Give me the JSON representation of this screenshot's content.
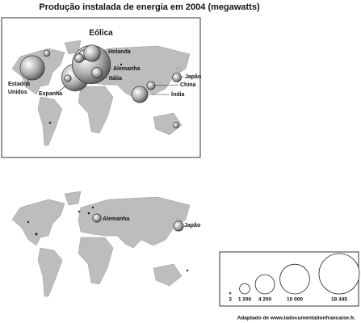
{
  "chart_data": {
    "type": "bubble_map",
    "title": "Produção instalada de energia em 2004 (megawatts)",
    "source": "Adaptado de www.ladocumentationfrancaise.fr.",
    "maps": [
      {
        "title": "Eólica",
        "bubbles": [
          {
            "name": "Estados Unidos",
            "value": 6740
          },
          {
            "name": "Espanha",
            "value": 8263
          },
          {
            "name": "Alemanha",
            "value": 16629
          },
          {
            "name": "Holanda",
            "value": 1078
          },
          {
            "name": "Itália",
            "value": 1265
          },
          {
            "name": "China",
            "value": 764
          },
          {
            "name": "Japão",
            "value": 896
          },
          {
            "name": "Índia",
            "value": 3000
          },
          {
            "name": null,
            "value": 3117
          },
          {
            "name": null,
            "value": 888
          },
          {
            "name": null,
            "value": 522
          },
          {
            "name": null,
            "value": 444
          },
          {
            "name": null,
            "value": 380
          },
          {
            "name": null,
            "value": 30
          },
          {
            "name": null,
            "value": 20
          }
        ]
      },
      {
        "bubbles": [
          {
            "name": "Alemanha",
            "value": 794
          },
          {
            "name": "Japão",
            "value": 1132
          },
          {
            "name": null,
            "value": 40
          },
          {
            "name": null,
            "value": 30
          },
          {
            "name": null,
            "value": 20
          },
          {
            "name": null,
            "value": 20
          },
          {
            "name": null,
            "value": 10
          },
          {
            "name": null,
            "value": 10
          }
        ]
      }
    ],
    "legend": [
      3,
      {
        "value": 1200,
        "label": "1 200"
      },
      {
        "value": 4200,
        "label": "4 200"
      },
      {
        "value": 10000,
        "label": "10 000"
      },
      {
        "value": 18445,
        "label": "18 445"
      }
    ]
  }
}
